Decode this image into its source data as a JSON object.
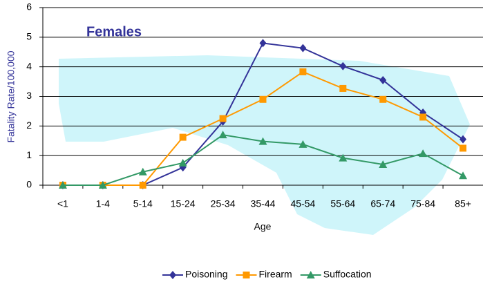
{
  "chart_data": {
    "type": "line",
    "title": "Females",
    "x_label": "Age",
    "y_label": "Fatality Rate/100,000",
    "categories": [
      "<1",
      "1-4",
      "5-14",
      "15-24",
      "25-34",
      "35-44",
      "45-54",
      "55-64",
      "65-74",
      "75-84",
      "85+"
    ],
    "series": [
      {
        "name": "Poisoning",
        "color": "#333399",
        "marker": "diamond",
        "values": [
          0,
          0,
          0,
          0.6,
          2.15,
          4.8,
          4.63,
          4.02,
          3.55,
          2.45,
          1.55
        ]
      },
      {
        "name": "Firearm",
        "color": "#ff9900",
        "marker": "square",
        "values": [
          0,
          0,
          0,
          1.62,
          2.25,
          2.9,
          3.83,
          3.27,
          2.9,
          2.3,
          1.25
        ]
      },
      {
        "name": "Suffocation",
        "color": "#339966",
        "marker": "triangle",
        "values": [
          0,
          0,
          0.45,
          0.75,
          1.7,
          1.48,
          1.38,
          0.92,
          0.7,
          1.07,
          0.32
        ]
      }
    ],
    "ylim": [
      0,
      6
    ],
    "yticks": [
      0,
      1,
      2,
      3,
      4,
      5,
      6
    ],
    "grid": true,
    "legend": "bottom"
  }
}
